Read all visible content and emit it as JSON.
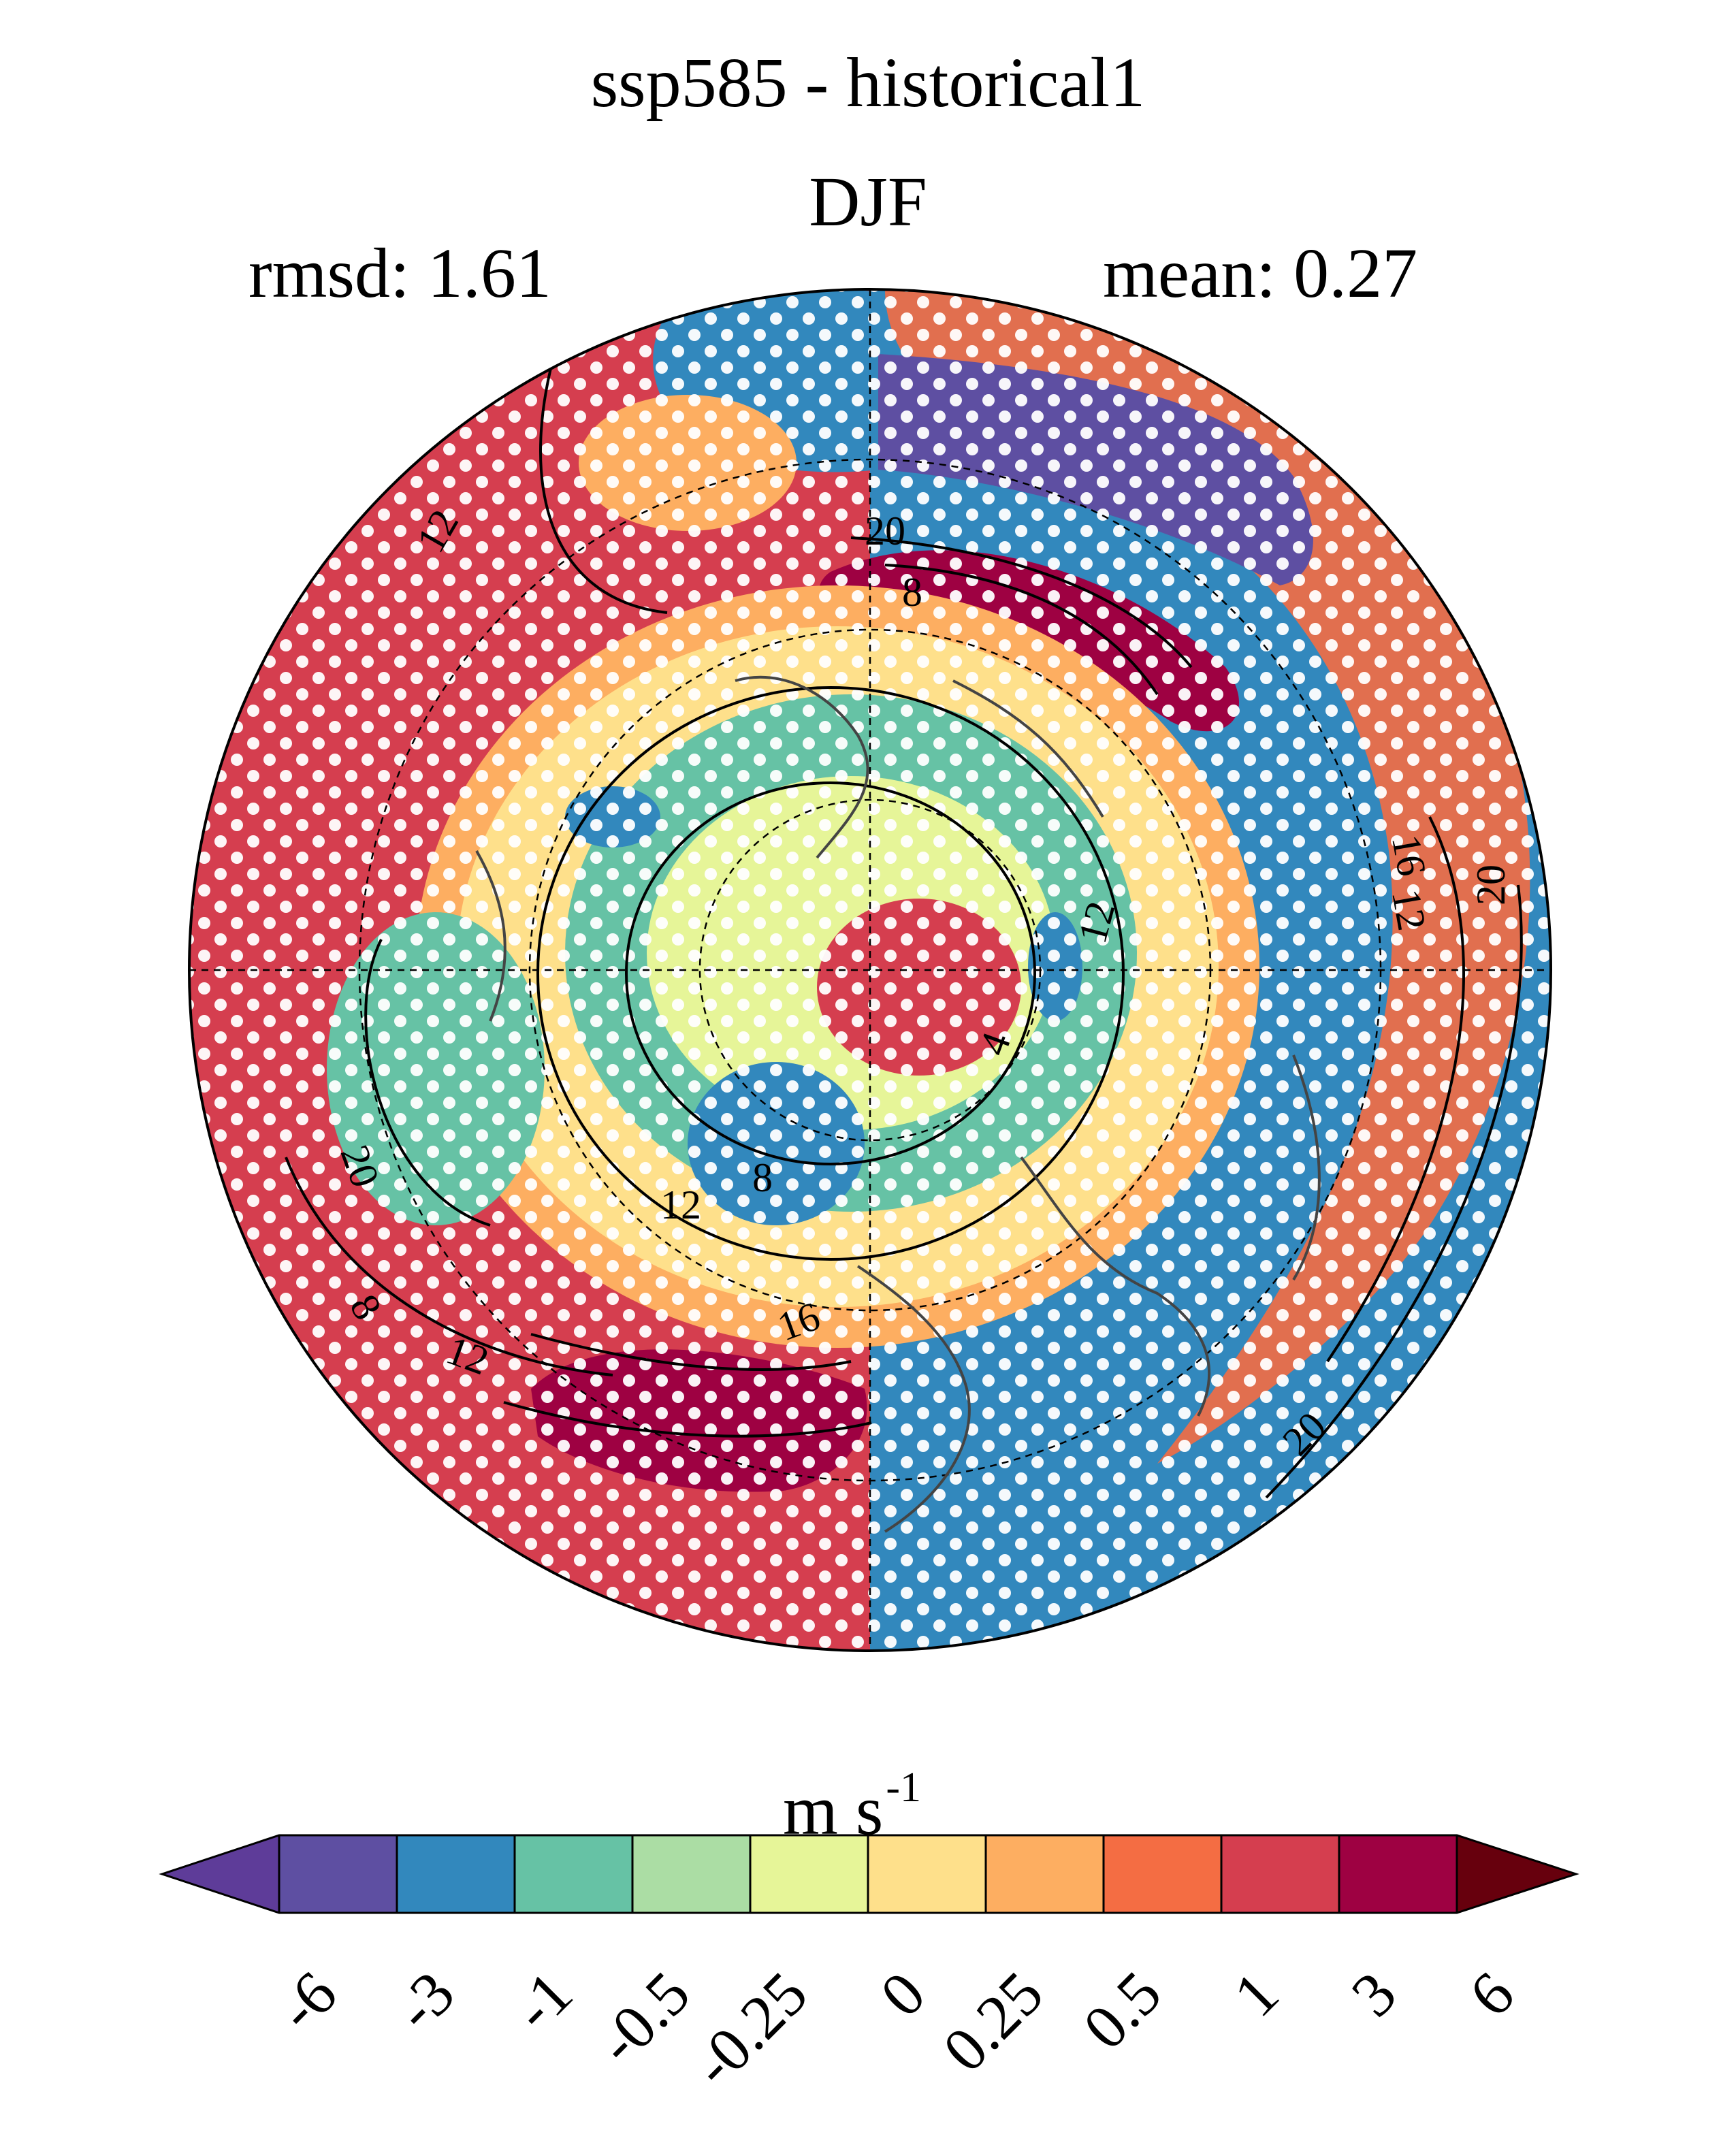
{
  "title": {
    "line1": "ssp585 - historical1",
    "line2": "DJF"
  },
  "stats": {
    "rmsd": "rmsd: 1.61",
    "mean": "mean: 0.27"
  },
  "colorbar": {
    "units": "m s",
    "units_exponent": "-1",
    "tick_labels": [
      "-6",
      "-3",
      "-1",
      "-0.5",
      "-0.25",
      "0",
      "0.25",
      "0.5",
      "1",
      "3",
      "6"
    ],
    "colors": [
      "#5e4fa2",
      "#3288bd",
      "#66c2a5",
      "#abdda4",
      "#e6f598",
      "#fee08b",
      "#fdae61",
      "#f46d43",
      "#d53e4f",
      "#9e0142"
    ],
    "under_color": "#5e3c99",
    "over_color": "#67000d"
  },
  "contour_labels": [
    "12",
    "20",
    "8",
    "16",
    "12",
    "20",
    "12",
    "4",
    "8",
    "12",
    "16",
    "12",
    "20",
    "8",
    "20"
  ],
  "colors": {
    "stipple": "#ffffff",
    "coastline": "#444444",
    "contour": "#000000",
    "grid": "#000000"
  }
}
